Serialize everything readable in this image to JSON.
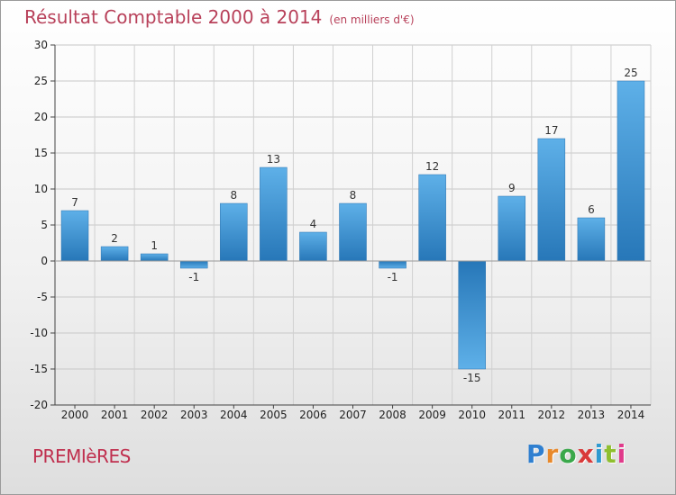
{
  "chart_data": {
    "type": "bar",
    "title": "Résultat Comptable 2000 à 2014",
    "subtitle": "(en milliers d'€)",
    "categories": [
      "2000",
      "2001",
      "2002",
      "2003",
      "2004",
      "2005",
      "2006",
      "2007",
      "2008",
      "2009",
      "2010",
      "2011",
      "2012",
      "2013",
      "2014"
    ],
    "values": [
      7,
      2,
      1,
      -1,
      8,
      13,
      4,
      8,
      -1,
      12,
      -15,
      9,
      17,
      6,
      25
    ],
    "value_labels": [
      "7",
      "2",
      "1",
      "-1",
      "8",
      "13",
      "4",
      "8",
      "-1",
      "12",
      "-15",
      "9",
      "17",
      "6",
      "25"
    ],
    "ylim": [
      -20,
      30
    ],
    "yticks": [
      30,
      25,
      20,
      15,
      10,
      5,
      0,
      -5,
      -10,
      -15,
      -20
    ],
    "ytick_labels": [
      "30",
      "25",
      "20",
      "15",
      "10",
      "5",
      "0",
      "-5",
      "-10",
      "-15",
      "-20"
    ],
    "xlabel": "",
    "ylabel": "",
    "grid": true,
    "bar_color": "#2e84c8",
    "bar_color_light": "#5eb0e8"
  },
  "footer": {
    "commune": "PREMIèRES",
    "logo_letters": [
      "P",
      "r",
      "o",
      "x",
      "i",
      "t",
      "i"
    ],
    "logo_colors": [
      "#2f7fd0",
      "#e8892b",
      "#3aa84b",
      "#d93a3a",
      "#2f9ad0",
      "#8fbf2f",
      "#e03a8a"
    ]
  }
}
